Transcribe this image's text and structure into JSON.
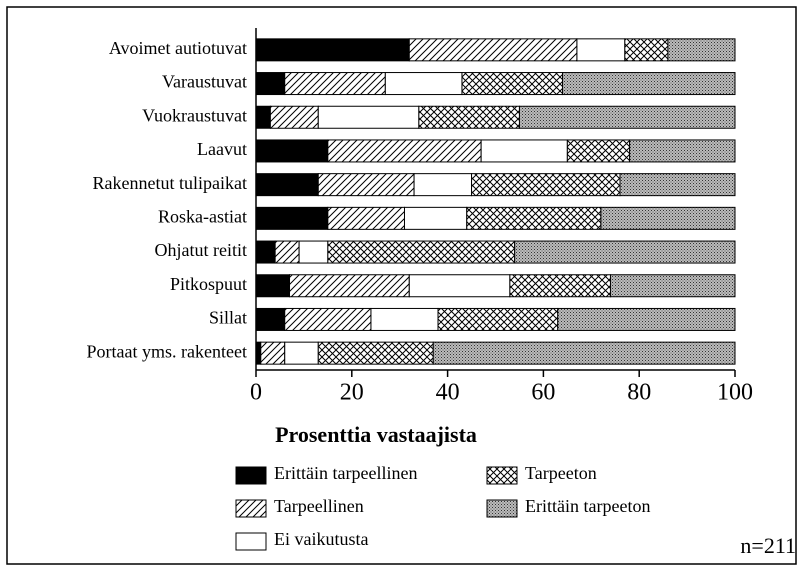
{
  "chart_data": {
    "type": "stacked-bar-horizontal",
    "categories": [
      "Avoimet autiotuvat",
      "Varaustuvat",
      "Vuokraustuvat",
      "Laavut",
      "Rakennetut tulipaikat",
      "Roska-astiat",
      "Ohjatut reitit",
      "Pitkospuut",
      "Sillat",
      "Portaat yms. rakenteet"
    ],
    "series": [
      {
        "name": "Erittäin tarpeellinen",
        "pattern": "solid",
        "values": [
          32,
          6,
          3,
          15,
          13,
          15,
          4,
          7,
          6,
          1
        ]
      },
      {
        "name": "Tarpeellinen",
        "pattern": "hatch",
        "values": [
          35,
          21,
          10,
          32,
          20,
          16,
          5,
          25,
          18,
          5
        ]
      },
      {
        "name": "Ei vaikutusta",
        "pattern": "none",
        "values": [
          10,
          16,
          21,
          18,
          12,
          13,
          6,
          21,
          14,
          7
        ]
      },
      {
        "name": "Tarpeeton",
        "pattern": "cross",
        "values": [
          9,
          21,
          21,
          13,
          31,
          28,
          39,
          21,
          25,
          24
        ]
      },
      {
        "name": "Erittäin tarpeeton",
        "pattern": "dots",
        "values": [
          14,
          36,
          45,
          22,
          24,
          28,
          46,
          26,
          37,
          63
        ]
      }
    ],
    "xlabel": "Prosenttia vastaajista",
    "xlim": [
      0,
      100
    ],
    "xticks": [
      0,
      20,
      40,
      60,
      80,
      100
    ],
    "annotation": "n=211"
  }
}
